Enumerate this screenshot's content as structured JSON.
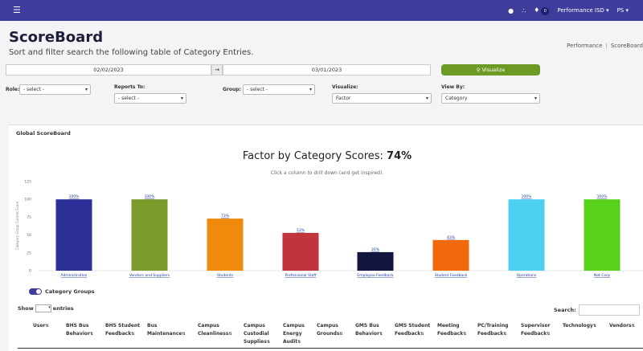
{
  "topbar": {
    "menu_icon": "hamburger-icon",
    "icons": [
      "bulb-icon",
      "sitemap-icon",
      "bell-icon"
    ],
    "notif_count": "0",
    "app_switcher": "Performance ISD",
    "user_initials": "PS"
  },
  "header": {
    "title": "ScoreBoard",
    "subtitle": "Sort and filter search the following table of Category Entries.",
    "breadcrumb": [
      "Performance",
      "ScoreBoard"
    ]
  },
  "filters": {
    "start_date": "02/02/2023",
    "date_arrow": "→",
    "end_date": "03/01/2023",
    "visualize_label": "Visualize",
    "role_label": "Role:",
    "role_value": "- select -",
    "reports_to_label": "Reports To:",
    "reports_to_value": "- select -",
    "group_label": "Group:",
    "group_value": "- select -",
    "visualize_select_label": "Visualize:",
    "visualize_select_value": "Factor",
    "view_by_label": "View By:",
    "view_by_value": "Category"
  },
  "card": {
    "title": "Global ScoreBoard"
  },
  "chart_data": {
    "type": "bar",
    "title": "Factor by Category Scores: ",
    "title_value": "74%",
    "subtitle": "Click a column to drill down (and get inspired).",
    "ylabel": "Category Group Current Score",
    "ylim": [
      0,
      125
    ],
    "yticks": [
      0,
      25,
      50,
      75,
      100,
      125
    ],
    "categories": [
      "Administration",
      "Vendors and Suppliers",
      "Students",
      "Professional Staff",
      "Employee Feedback",
      "Student Feedback",
      "Operations",
      "Not Corp"
    ],
    "values": [
      100,
      100,
      73,
      53,
      26,
      43,
      100,
      100
    ],
    "labels": [
      "100%",
      "100%",
      "73%",
      "53%",
      "26%",
      "43%",
      "100%",
      "100%"
    ],
    "colors": [
      "#2b2f96",
      "#7a9a2b",
      "#ef8a0c",
      "#c0353b",
      "#12163f",
      "#f2680c",
      "#4dcff2",
      "#57d11a"
    ],
    "grid": false,
    "legend": "none"
  },
  "toggle": {
    "label": "Category Groups"
  },
  "table": {
    "show_label": "Show",
    "entries_label": "entries",
    "search_label": "Search:",
    "columns": [
      "User",
      "BHS Bus Behavior",
      "BHS Student Feedback",
      "Bus Maintenance",
      "Campus Cleanliness",
      "Campus Custodial Supplies",
      "Campus Energy Audit",
      "Campus Grounds",
      "GMS Bus Behavior",
      "GMS Student Feedback",
      "Meeting Feedback",
      "PC/Training Feedback",
      "Supervisor Feedback",
      "Technology",
      "Vendors"
    ]
  }
}
